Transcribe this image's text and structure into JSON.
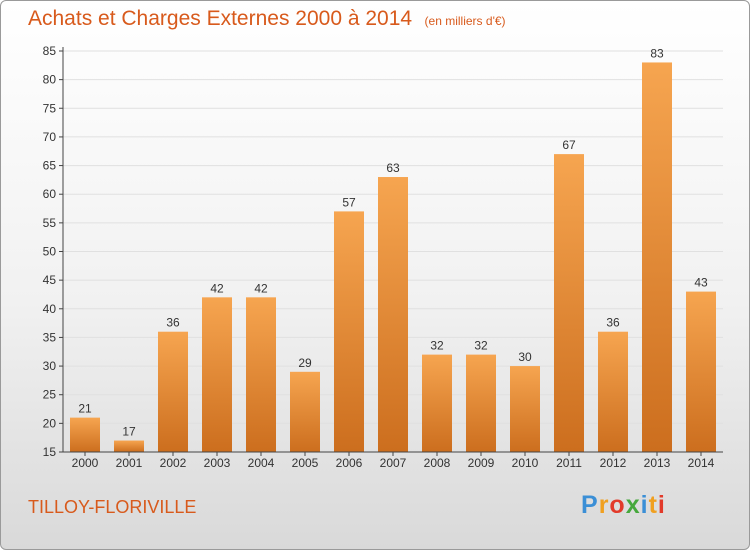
{
  "title": "Achats et Charges Externes 2000 à 2014",
  "subtitle": "(en milliers d'€)",
  "commune": "TILLOY-FLORIVILLE",
  "logo": {
    "letters": [
      "P",
      "r",
      "o",
      "x",
      "i",
      "t",
      "i"
    ],
    "colors": [
      "#3b8fd6",
      "#f0a020",
      "#e23a2a",
      "#46a83c",
      "#3b8fd6",
      "#f0a020",
      "#e23a2a"
    ]
  },
  "colors": {
    "title": "#d85a1c",
    "bar_top": "#f6a550",
    "bar_bottom": "#cc6e1e",
    "axis": "#444444",
    "grid": "#e0e0e0"
  },
  "chart_data": {
    "type": "bar",
    "categories": [
      "2000",
      "2001",
      "2002",
      "2003",
      "2004",
      "2005",
      "2006",
      "2007",
      "2008",
      "2009",
      "2010",
      "2011",
      "2012",
      "2013",
      "2014"
    ],
    "values": [
      21,
      17,
      36,
      42,
      42,
      29,
      57,
      63,
      32,
      32,
      30,
      67,
      36,
      83,
      43
    ],
    "yticks": [
      15,
      20,
      25,
      30,
      35,
      40,
      45,
      50,
      55,
      60,
      65,
      70,
      75,
      80,
      85
    ],
    "ylim": [
      15,
      85
    ],
    "data_labels": true,
    "grid": true
  }
}
